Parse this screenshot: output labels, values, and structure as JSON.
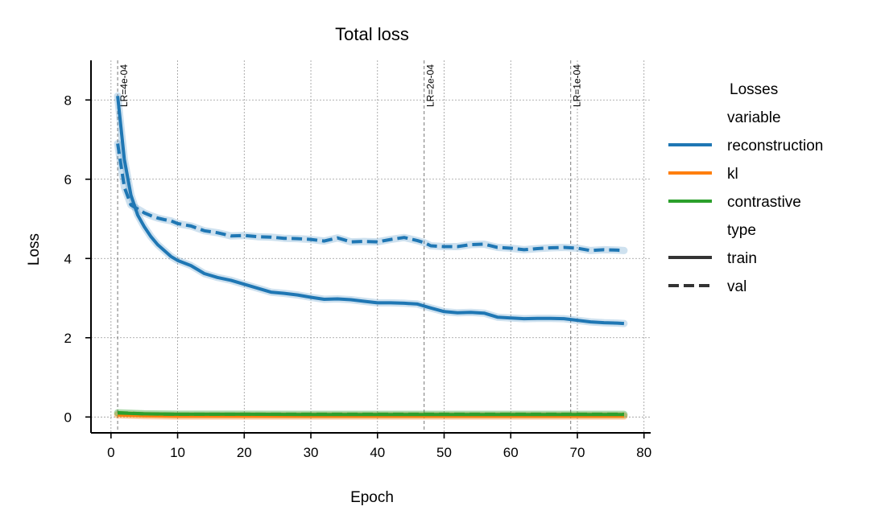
{
  "chart_data": {
    "type": "line",
    "title": "Total loss",
    "xlabel": "Epoch",
    "ylabel": "Loss",
    "xlim": [
      -3,
      81
    ],
    "ylim": [
      -0.4,
      9.0
    ],
    "xticks": [
      0,
      10,
      20,
      30,
      40,
      50,
      60,
      70,
      80
    ],
    "yticks": [
      0,
      2,
      4,
      6,
      8
    ],
    "grid": true,
    "legend": {
      "title": "Losses",
      "placement": "outside-right",
      "groups": [
        {
          "header": "variable",
          "entries": [
            {
              "label": "reconstruction",
              "color": "#1f77b4",
              "style": "solid"
            },
            {
              "label": "kl",
              "color": "#ff7f0e",
              "style": "solid"
            },
            {
              "label": "contrastive",
              "color": "#2ca02c",
              "style": "solid"
            }
          ]
        },
        {
          "header": "type",
          "entries": [
            {
              "label": "train",
              "color": "#333333",
              "style": "solid"
            },
            {
              "label": "val",
              "color": "#333333",
              "style": "dashed"
            }
          ]
        }
      ]
    },
    "annotations": [
      {
        "x": 1,
        "label": "LR=4e-04"
      },
      {
        "x": 47,
        "label": "LR=2e-04"
      },
      {
        "x": 69,
        "label": "LR=1e-04"
      }
    ],
    "series": [
      {
        "variable": "reconstruction",
        "type": "train",
        "color": "#1f77b4",
        "dashed": false,
        "x": [
          1,
          2,
          3,
          4,
          5,
          6,
          7,
          8,
          9,
          10,
          12,
          14,
          16,
          18,
          20,
          22,
          24,
          26,
          28,
          30,
          32,
          34,
          36,
          38,
          40,
          42,
          44,
          46,
          47,
          48,
          50,
          52,
          54,
          56,
          58,
          60,
          62,
          64,
          66,
          68,
          70,
          72,
          74,
          76,
          77
        ],
        "y": [
          8.1,
          6.5,
          5.6,
          5.1,
          4.8,
          4.55,
          4.35,
          4.2,
          4.05,
          3.95,
          3.82,
          3.62,
          3.52,
          3.45,
          3.35,
          3.25,
          3.15,
          3.12,
          3.08,
          3.02,
          2.97,
          2.98,
          2.96,
          2.92,
          2.88,
          2.88,
          2.87,
          2.85,
          2.8,
          2.75,
          2.66,
          2.63,
          2.64,
          2.62,
          2.52,
          2.5,
          2.48,
          2.49,
          2.49,
          2.48,
          2.44,
          2.4,
          2.38,
          2.37,
          2.36
        ]
      },
      {
        "variable": "reconstruction",
        "type": "val",
        "color": "#1f77b4",
        "dashed": true,
        "x": [
          1,
          2,
          3,
          4,
          5,
          6,
          7,
          8,
          9,
          10,
          12,
          14,
          16,
          18,
          20,
          22,
          24,
          26,
          28,
          30,
          32,
          34,
          36,
          38,
          40,
          42,
          44,
          46,
          47,
          48,
          50,
          52,
          54,
          56,
          58,
          60,
          62,
          64,
          66,
          68,
          70,
          72,
          74,
          76,
          77
        ],
        "y": [
          6.9,
          5.8,
          5.35,
          5.25,
          5.15,
          5.08,
          5.02,
          4.98,
          4.95,
          4.88,
          4.82,
          4.7,
          4.65,
          4.57,
          4.58,
          4.55,
          4.54,
          4.51,
          4.5,
          4.48,
          4.44,
          4.52,
          4.42,
          4.43,
          4.42,
          4.48,
          4.53,
          4.45,
          4.4,
          4.32,
          4.3,
          4.3,
          4.35,
          4.36,
          4.28,
          4.26,
          4.22,
          4.25,
          4.27,
          4.28,
          4.26,
          4.2,
          4.22,
          4.21,
          4.2
        ]
      },
      {
        "variable": "kl",
        "type": "train",
        "color": "#ff7f0e",
        "dashed": false,
        "x": [
          1,
          5,
          10,
          20,
          30,
          40,
          50,
          60,
          70,
          77
        ],
        "y": [
          0.05,
          0.03,
          0.02,
          0.02,
          0.02,
          0.02,
          0.02,
          0.02,
          0.02,
          0.02
        ]
      },
      {
        "variable": "kl",
        "type": "val",
        "color": "#ff7f0e",
        "dashed": true,
        "x": [
          1,
          5,
          10,
          20,
          30,
          40,
          50,
          60,
          70,
          77
        ],
        "y": [
          0.06,
          0.04,
          0.03,
          0.03,
          0.03,
          0.03,
          0.03,
          0.03,
          0.03,
          0.03
        ]
      },
      {
        "variable": "contrastive",
        "type": "train",
        "color": "#2ca02c",
        "dashed": false,
        "x": [
          1,
          5,
          10,
          20,
          30,
          40,
          50,
          60,
          70,
          77
        ],
        "y": [
          0.1,
          0.08,
          0.07,
          0.07,
          0.06,
          0.06,
          0.06,
          0.06,
          0.06,
          0.06
        ]
      },
      {
        "variable": "contrastive",
        "type": "val",
        "color": "#2ca02c",
        "dashed": true,
        "x": [
          1,
          5,
          10,
          20,
          30,
          40,
          50,
          60,
          70,
          77
        ],
        "y": [
          0.11,
          0.08,
          0.07,
          0.07,
          0.07,
          0.07,
          0.07,
          0.07,
          0.07,
          0.07
        ]
      }
    ]
  }
}
